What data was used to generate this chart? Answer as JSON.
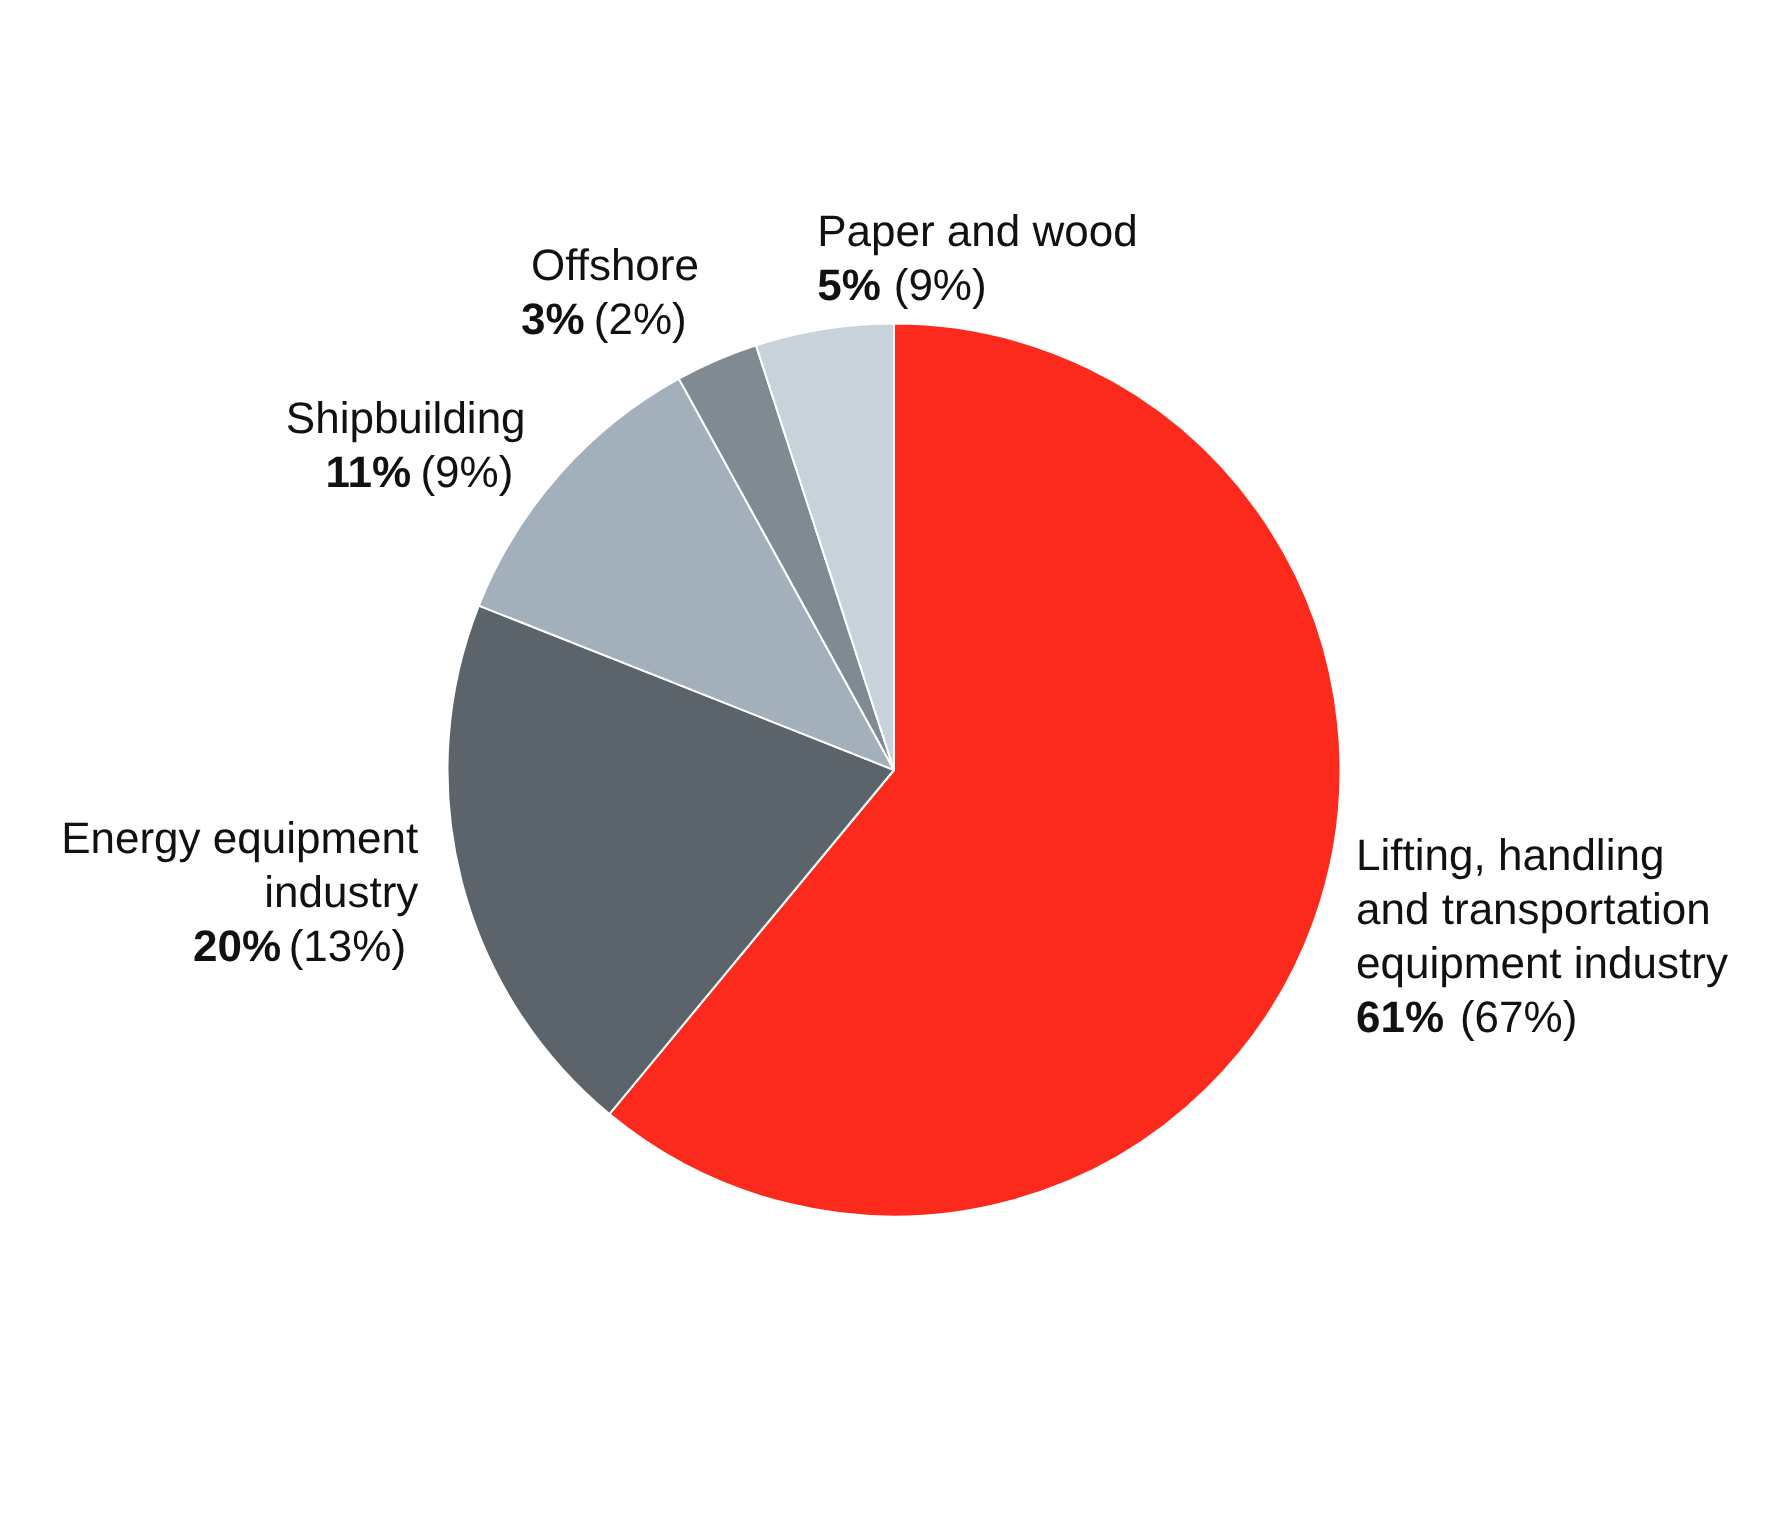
{
  "chart_data": {
    "type": "pie",
    "categories": [
      "Lifting, handling and transportation equipment industry",
      "Energy equipment industry",
      "Shipbuilding",
      "Offshore",
      "Paper and wood"
    ],
    "values": [
      61,
      20,
      11,
      3,
      5
    ],
    "colors": [
      "#fb2a1c",
      "#5b636b",
      "#a3b0bb",
      "#7f8a93",
      "#c8d2db"
    ],
    "value_labels": [
      "61% (67%)",
      "20% (13%)",
      "11% (9%)",
      "3% (2%)",
      "5% (9%)"
    ]
  }
}
